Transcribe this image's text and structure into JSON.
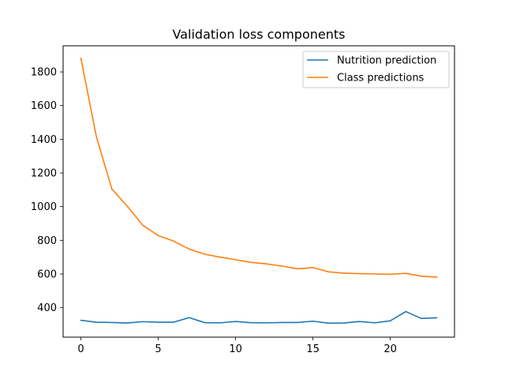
{
  "chart_data": {
    "type": "line",
    "title": "Validation loss components",
    "xlabel": "",
    "ylabel": "",
    "xlim": [
      -1.15,
      24.15
    ],
    "ylim": [
      225,
      1955
    ],
    "xticks": [
      0,
      5,
      10,
      15,
      20
    ],
    "yticks": [
      400,
      600,
      800,
      1000,
      1200,
      1400,
      1600,
      1800
    ],
    "grid": false,
    "legend_position": "top-right",
    "x": [
      0,
      1,
      2,
      3,
      4,
      5,
      6,
      7,
      8,
      9,
      10,
      11,
      12,
      13,
      14,
      15,
      16,
      17,
      18,
      19,
      20,
      21,
      22,
      23
    ],
    "series": [
      {
        "name": "Nutrition prediction",
        "color": "#1f77b4",
        "values": [
          325,
          314,
          312,
          309,
          317,
          314,
          314,
          341,
          311,
          310,
          318,
          311,
          310,
          312,
          312,
          320,
          308,
          309,
          318,
          310,
          322,
          377,
          336,
          340
        ]
      },
      {
        "name": "Class predictions",
        "color": "#ff7f0e",
        "values": [
          1880,
          1415,
          1105,
          1002,
          890,
          828,
          795,
          748,
          718,
          700,
          685,
          669,
          660,
          647,
          631,
          638,
          613,
          605,
          602,
          600,
          598,
          604,
          587,
          582
        ]
      }
    ]
  }
}
